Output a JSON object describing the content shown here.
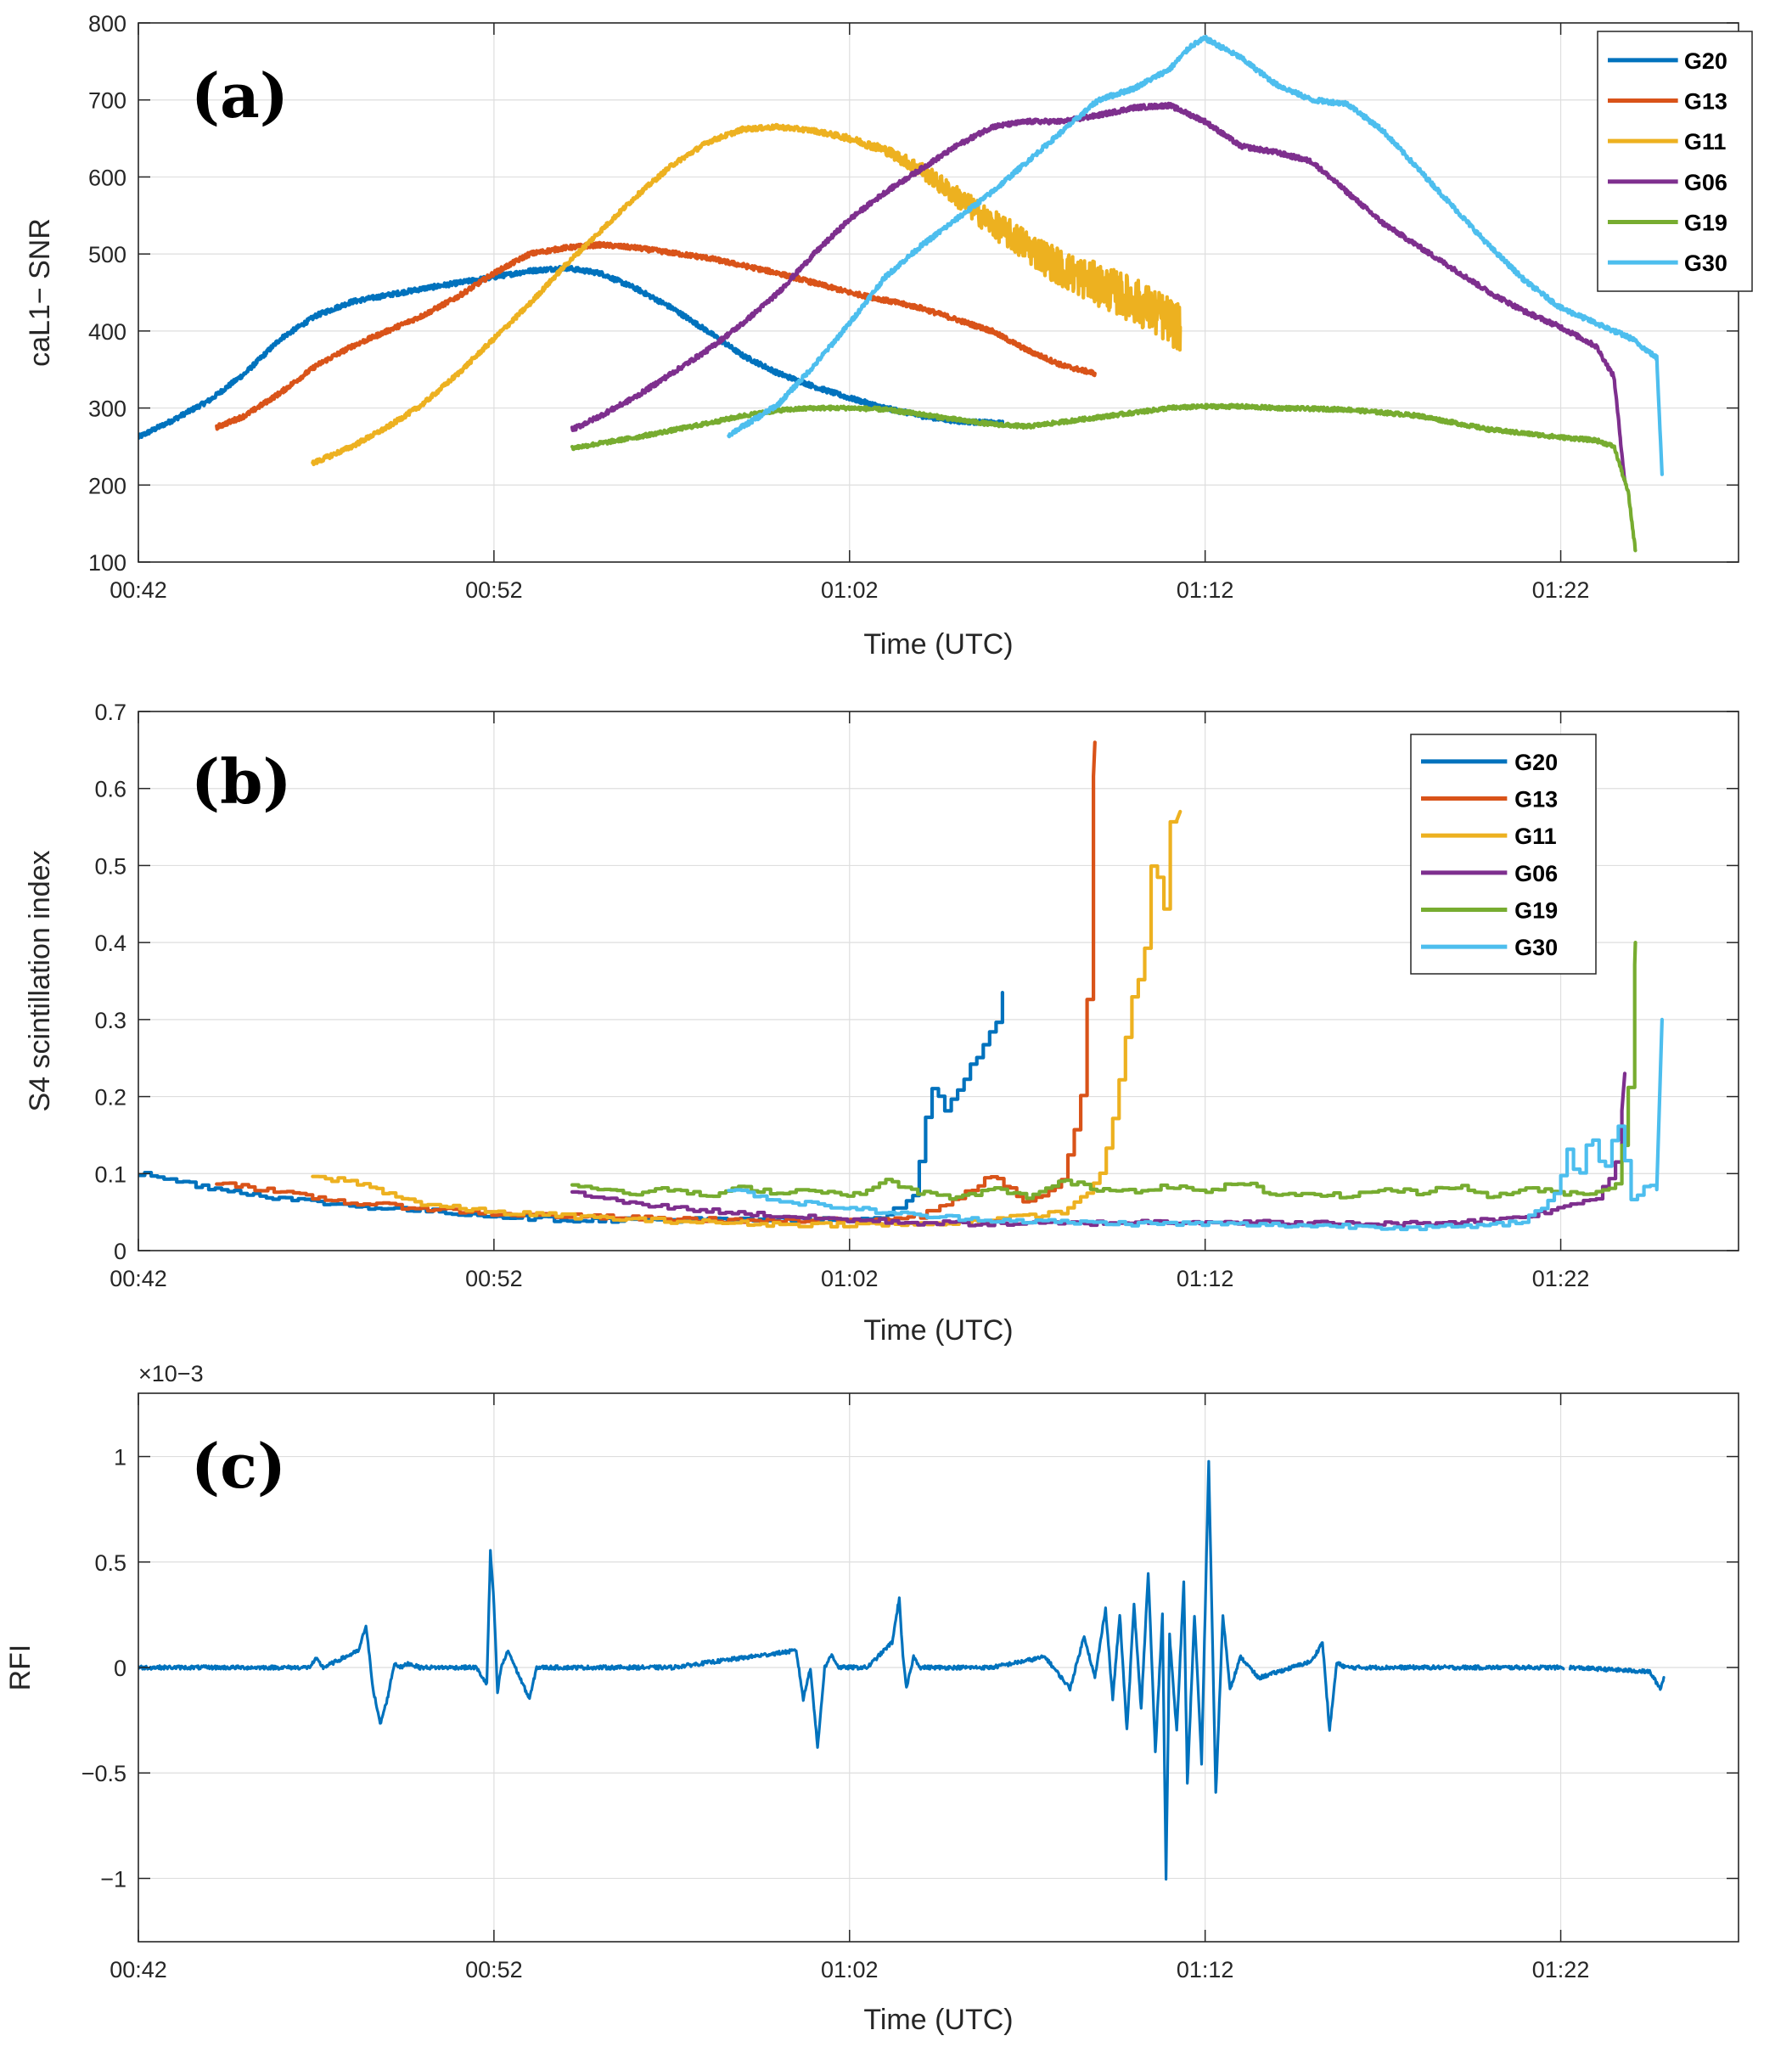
{
  "chart_data": [
    {
      "id": "a",
      "type": "line",
      "panel_label": "(a)",
      "xlabel": "Time (UTC)",
      "ylabel": "caL1− SNR",
      "xlim": [
        0,
        45
      ],
      "ylim": [
        100,
        800
      ],
      "xticks": [
        0,
        10,
        20,
        30,
        40
      ],
      "xtick_labels": [
        "00:42",
        "00:52",
        "01:02",
        "01:12",
        "01:22"
      ],
      "yticks": [
        100,
        200,
        300,
        400,
        500,
        600,
        700,
        800
      ],
      "ytick_labels": [
        "100",
        "200",
        "300",
        "400",
        "500",
        "600",
        "700",
        "800"
      ],
      "grid": true,
      "legend_position": "top-right",
      "x_units": "minutes after 00:42 UTC",
      "series": [
        {
          "name": "G20",
          "color": "#0072BD",
          "x": [
            0,
            1,
            2,
            3,
            4,
            5,
            6,
            8,
            10,
            11,
            12,
            13,
            14,
            15,
            16,
            17,
            18,
            19,
            20,
            21,
            22,
            23,
            24.3
          ],
          "y": [
            262,
            285,
            310,
            345,
            390,
            420,
            438,
            455,
            470,
            478,
            482,
            475,
            455,
            430,
            400,
            368,
            345,
            328,
            313,
            300,
            290,
            283,
            280
          ],
          "noise": 3
        },
        {
          "name": "G13",
          "color": "#D95319",
          "x": [
            2.2,
            3,
            4,
            5,
            6,
            7,
            8,
            9,
            10,
            11,
            12,
            13,
            14,
            16,
            18,
            20,
            22,
            24,
            25,
            26,
            26.9
          ],
          "y": [
            275,
            290,
            320,
            355,
            380,
            400,
            420,
            445,
            475,
            500,
            508,
            512,
            508,
            495,
            475,
            450,
            430,
            400,
            375,
            355,
            345
          ],
          "noise": 3
        },
        {
          "name": "G11",
          "color": "#EDB120",
          "x": [
            4.9,
            6,
            7,
            8,
            9,
            10,
            11,
            12,
            13,
            14,
            15,
            16,
            17,
            18,
            19,
            20,
            21,
            22,
            23,
            24,
            25,
            26,
            27,
            28,
            29.3
          ],
          "y": [
            228,
            250,
            275,
            305,
            345,
            390,
            435,
            485,
            530,
            575,
            615,
            645,
            662,
            665,
            660,
            650,
            635,
            610,
            575,
            540,
            510,
            480,
            460,
            440,
            405
          ],
          "noise": [
            3,
            3,
            3,
            3,
            3,
            3,
            3,
            3,
            3,
            3,
            3,
            3,
            3,
            3,
            3,
            4,
            6,
            10,
            14,
            18,
            22,
            25,
            28,
            30,
            32
          ]
        },
        {
          "name": "G06",
          "color": "#7E2F8E",
          "x": [
            12.2,
            13,
            14,
            15,
            16,
            17,
            18,
            19,
            20,
            21,
            22,
            23,
            24,
            25,
            26,
            27,
            28,
            29,
            30,
            31,
            32,
            33,
            34,
            35,
            36,
            37,
            38,
            39,
            40,
            41,
            41.5,
            41.8
          ],
          "y": [
            272,
            290,
            315,
            345,
            375,
            410,
            450,
            500,
            545,
            580,
            610,
            640,
            665,
            672,
            672,
            680,
            690,
            693,
            672,
            640,
            632,
            620,
            580,
            540,
            510,
            480,
            450,
            425,
            405,
            380,
            340,
            205
          ],
          "noise": 3
        },
        {
          "name": "G19",
          "color": "#77AC30",
          "x": [
            12.2,
            14,
            16,
            17,
            18,
            19,
            20,
            21,
            22,
            23,
            24,
            25,
            26,
            27,
            28,
            29,
            30,
            31,
            32,
            34,
            36,
            38,
            40,
            41,
            41.5,
            41.9,
            42.1
          ],
          "y": [
            248,
            262,
            280,
            290,
            297,
            300,
            300,
            298,
            292,
            285,
            279,
            276,
            282,
            288,
            294,
            300,
            302,
            302,
            300,
            298,
            290,
            272,
            262,
            258,
            250,
            190,
            115
          ],
          "noise": 2.5
        },
        {
          "name": "G30",
          "color": "#4DBEEE",
          "x": [
            16.6,
            17.5,
            18,
            19,
            20,
            21,
            22,
            23,
            24,
            25,
            26,
            27,
            28,
            29,
            29.6,
            30,
            31,
            32,
            33,
            34,
            35,
            36,
            37,
            38,
            39,
            40,
            41,
            42,
            42.7,
            42.85
          ],
          "y": [
            265,
            290,
            305,
            355,
            410,
            470,
            510,
            545,
            580,
            620,
            660,
            700,
            715,
            740,
            770,
            780,
            755,
            720,
            700,
            695,
            660,
            610,
            560,
            510,
            465,
            430,
            410,
            390,
            365,
            215
          ],
          "noise": 3
        }
      ]
    },
    {
      "id": "b",
      "type": "line",
      "panel_label": "(b)",
      "xlabel": "Time (UTC)",
      "ylabel": "S4 scintillation index",
      "xlim": [
        0,
        45
      ],
      "ylim": [
        0,
        0.7
      ],
      "xticks": [
        0,
        10,
        20,
        30,
        40
      ],
      "xtick_labels": [
        "00:42",
        "00:52",
        "01:02",
        "01:12",
        "01:22"
      ],
      "yticks": [
        0,
        0.1,
        0.2,
        0.3,
        0.4,
        0.5,
        0.6,
        0.7
      ],
      "ytick_labels": [
        "0",
        "0.1",
        "0.2",
        "0.3",
        "0.4",
        "0.5",
        "0.6",
        "0.7"
      ],
      "grid": true,
      "legend_position": "top-right",
      "x_units": "minutes after 00:42 UTC",
      "series": [
        {
          "name": "G20",
          "color": "#0072BD",
          "x": [
            0,
            2,
            4,
            6,
            8,
            10,
            12,
            14,
            16,
            18,
            19,
            20,
            21,
            21.8,
            22,
            22.3,
            22.6,
            23,
            23.4,
            23.8,
            24.1,
            24.3
          ],
          "y": [
            0.1,
            0.082,
            0.068,
            0.058,
            0.052,
            0.045,
            0.04,
            0.04,
            0.04,
            0.04,
            0.04,
            0.04,
            0.045,
            0.07,
            0.13,
            0.22,
            0.18,
            0.2,
            0.25,
            0.26,
            0.3,
            0.335
          ]
        },
        {
          "name": "G13",
          "color": "#D95319",
          "x": [
            2.2,
            4,
            6,
            8,
            10,
            12,
            14,
            16,
            18,
            20,
            22,
            23.5,
            24,
            25,
            26,
            26.5,
            26.7,
            26.9
          ],
          "y": [
            0.09,
            0.075,
            0.062,
            0.055,
            0.048,
            0.045,
            0.042,
            0.04,
            0.038,
            0.04,
            0.045,
            0.08,
            0.1,
            0.06,
            0.09,
            0.2,
            0.34,
            0.66
          ]
        },
        {
          "name": "G11",
          "color": "#EDB120",
          "x": [
            4.9,
            6,
            7,
            8,
            10,
            12,
            14,
            16,
            18,
            20,
            22,
            24,
            26,
            27,
            27.4,
            27.8,
            28.2,
            28.5,
            28.8,
            29.1,
            29.3
          ],
          "y": [
            0.095,
            0.09,
            0.075,
            0.06,
            0.05,
            0.045,
            0.04,
            0.037,
            0.034,
            0.034,
            0.034,
            0.04,
            0.05,
            0.09,
            0.17,
            0.3,
            0.35,
            0.5,
            0.44,
            0.58,
            0.57
          ]
        },
        {
          "name": "G06",
          "color": "#7E2F8E",
          "x": [
            12.2,
            14,
            16,
            18,
            20,
            22,
            24,
            26,
            28,
            30,
            32,
            34,
            36,
            38,
            39,
            40,
            40.6,
            41,
            41.3,
            41.6,
            41.8
          ],
          "y": [
            0.075,
            0.06,
            0.052,
            0.045,
            0.04,
            0.036,
            0.035,
            0.035,
            0.037,
            0.038,
            0.036,
            0.035,
            0.035,
            0.04,
            0.045,
            0.055,
            0.065,
            0.07,
            0.09,
            0.12,
            0.23
          ]
        },
        {
          "name": "G19",
          "color": "#77AC30",
          "x": [
            12.2,
            14,
            15,
            16,
            17,
            18,
            19,
            20,
            21,
            22,
            23,
            24,
            25,
            26,
            27,
            28,
            29,
            30,
            31,
            32,
            33,
            34,
            35,
            36,
            37,
            38,
            39,
            40,
            41,
            41.6,
            41.9,
            42.1
          ],
          "y": [
            0.085,
            0.075,
            0.08,
            0.07,
            0.082,
            0.075,
            0.08,
            0.07,
            0.09,
            0.075,
            0.068,
            0.08,
            0.07,
            0.09,
            0.08,
            0.078,
            0.085,
            0.075,
            0.09,
            0.07,
            0.075,
            0.07,
            0.08,
            0.075,
            0.085,
            0.07,
            0.08,
            0.075,
            0.075,
            0.09,
            0.21,
            0.4
          ]
        },
        {
          "name": "G30",
          "color": "#4DBEEE",
          "x": [
            16.6,
            18,
            20,
            22,
            24,
            26,
            28,
            30,
            32,
            34,
            36,
            38,
            39,
            39.8,
            40.2,
            40.5,
            40.8,
            41.2,
            41.6,
            42,
            42.4,
            42.7,
            42.85
          ],
          "y": [
            0.08,
            0.065,
            0.055,
            0.045,
            0.04,
            0.037,
            0.035,
            0.035,
            0.033,
            0.032,
            0.03,
            0.032,
            0.04,
            0.07,
            0.13,
            0.09,
            0.16,
            0.1,
            0.17,
            0.06,
            0.09,
            0.08,
            0.3
          ]
        }
      ]
    },
    {
      "id": "c",
      "type": "line",
      "panel_label": "(c)",
      "xlabel": "Time (UTC)",
      "ylabel": "RFI",
      "exponent_label": "×10−3",
      "xlim": [
        0,
        45
      ],
      "ylim": [
        -1.3,
        1.3
      ],
      "xticks": [
        0,
        10,
        20,
        30,
        40
      ],
      "xtick_labels": [
        "00:42",
        "00:52",
        "01:02",
        "01:12",
        "01:22"
      ],
      "yticks": [
        -1,
        -0.5,
        0,
        0.5,
        1
      ],
      "ytick_labels": [
        "−1",
        "−0.5",
        "0",
        "0.5",
        "1"
      ],
      "grid": true,
      "x_units": "minutes after 00:42 UTC",
      "y_units": "×10^-3",
      "series": [
        {
          "name": "RFI",
          "color": "#0072BD",
          "x": [
            0,
            4.8,
            5,
            5.2,
            6.2,
            6.4,
            6.6,
            6.8,
            7,
            7.2,
            7.4,
            7.6,
            7.9,
            8.2,
            9.5,
            9.8,
            9.9,
            10,
            10.1,
            10.2,
            10.4,
            10.6,
            11,
            11.2,
            11.4,
            11.6,
            15,
            18.5,
            18.7,
            18.9,
            19.1,
            19.3,
            19.5,
            19.7,
            20,
            20.5,
            21.2,
            21.4,
            21.5,
            21.6,
            21.8,
            22,
            24,
            25.5,
            26.2,
            26.6,
            26.9,
            27.2,
            27.4,
            27.6,
            27.8,
            28.0,
            28.2,
            28.4,
            28.6,
            28.8,
            28.9,
            29.0,
            29.2,
            29.4,
            29.5,
            29.7,
            29.9,
            30.1,
            30.3,
            30.5,
            30.7,
            31,
            31.5,
            33,
            33.3,
            33.5,
            33.7,
            34,
            35,
            40.1,
            40.3,
            42.5,
            42.8,
            42.9
          ],
          "y": [
            0,
            0,
            0.04,
            0,
            0.08,
            0.2,
            -0.1,
            -0.27,
            -0.15,
            0.02,
            0,
            0.02,
            0,
            0,
            0,
            -0.08,
            0.55,
            0.3,
            -0.12,
            0,
            0.08,
            0,
            -0.15,
            0,
            0,
            0,
            0,
            0.08,
            -0.15,
            0,
            -0.38,
            0,
            0.06,
            0,
            0,
            0,
            0.12,
            0.33,
            0.05,
            -0.1,
            0.05,
            0,
            0,
            0.05,
            -0.1,
            0.15,
            -0.05,
            0.28,
            -0.15,
            0.25,
            -0.3,
            0.3,
            -0.2,
            0.45,
            -0.4,
            0.25,
            -1.0,
            0.15,
            -0.3,
            0.4,
            -0.55,
            0.25,
            -0.45,
            0.97,
            -0.6,
            0.25,
            -0.1,
            0.05,
            -0.05,
            0.03,
            0.12,
            -0.3,
            0.02,
            0,
            0,
            0,
            0,
            -0.02,
            -0.1,
            -0.05
          ],
          "gaps_after_x": [
            40.1
          ]
        }
      ]
    }
  ]
}
